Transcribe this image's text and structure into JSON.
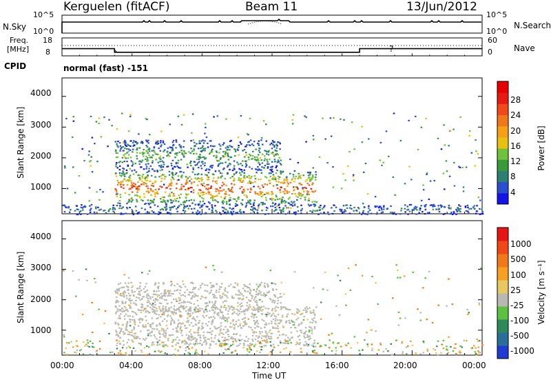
{
  "header": {
    "station": "Kerguelen (fitACF)",
    "beam": "Beam 11",
    "date": "13/Jun/2012"
  },
  "nsky_panel": {
    "left_label": "N.Sky",
    "right_label": "N.Search",
    "left_ticks": [
      "10^5",
      "10^0"
    ],
    "right_ticks": [
      "10^5",
      "10^0"
    ]
  },
  "freq_panel": {
    "left_label_line1": "Freq.",
    "left_label_line2": "[MHz]",
    "right_label": "Nave",
    "left_ticks": [
      "18",
      "8"
    ],
    "right_ticks": [
      "60",
      "0"
    ],
    "question_mark": "?"
  },
  "cpid_panel": {
    "label": "CPID",
    "mode_text": "normal (fast) -151"
  },
  "time_axis": {
    "xlabel": "Time UT",
    "ticks": [
      "00:00",
      "04:00",
      "08:00",
      "12:00",
      "16:00",
      "20:00",
      "00:00"
    ]
  },
  "power_colorbar": {
    "label": "Power [dB]",
    "ticks": [
      "28",
      "24",
      "20",
      "16",
      "12",
      "8",
      "4"
    ],
    "colors": [
      "#1414e6",
      "#2a4ed0",
      "#2e7f73",
      "#3a9a3a",
      "#6fc23a",
      "#e8c010",
      "#f5a015",
      "#f07818",
      "#f04a18",
      "#e81a14",
      "#e60000"
    ]
  },
  "velocity_colorbar": {
    "label": "Velocity [m s⁻¹]",
    "ticks": [
      "1000",
      "500",
      "100",
      "25",
      "-25",
      "-100",
      "-500",
      "-1000"
    ],
    "colors": [
      "#1e3cd2",
      "#2a6f9a",
      "#2e8a5a",
      "#5cc040",
      "#b9b9b0",
      "#e8c860",
      "#f5a020",
      "#f07a18",
      "#f04818",
      "#e61414"
    ]
  },
  "chart_data": [
    {
      "type": "heatmap",
      "title": "",
      "quantity": "Power",
      "xlabel": "Time UT",
      "ylabel": "Slant Range [km]",
      "xlim_hours": [
        0,
        24
      ],
      "ylim_km": [
        180,
        4600
      ],
      "yticks": [
        "1000",
        "2000",
        "3000",
        "4000"
      ],
      "zlim_db": [
        0,
        32
      ],
      "features": [
        {
          "name": "main echo band",
          "t_start_h": 3.0,
          "t_end_h": 14.5,
          "range_km": [
            500,
            1600
          ],
          "peak_power_db": 30
        },
        {
          "name": "upper echo band",
          "t_start_h": 3.0,
          "t_end_h": 12.5,
          "range_km": [
            1600,
            2600
          ],
          "peak_power_db": 16
        },
        {
          "name": "near-range ground echoes",
          "t_start_h": 0.0,
          "t_end_h": 24.0,
          "range_km": [
            180,
            500
          ],
          "peak_power_db": 12
        }
      ]
    },
    {
      "type": "heatmap",
      "title": "",
      "quantity": "Velocity",
      "xlabel": "Time UT",
      "ylabel": "Slant Range [km]",
      "xlim_hours": [
        0,
        24
      ],
      "ylim_km": [
        180,
        4600
      ],
      "yticks": [
        "1000",
        "2000",
        "3000",
        "4000"
      ],
      "zlim_ms": [
        -1000,
        1000
      ],
      "features": [
        {
          "name": "main echo band (near-zero velocity)",
          "t_start_h": 3.0,
          "t_end_h": 14.5,
          "range_km": [
            500,
            1800
          ],
          "velocity_ms": 0
        },
        {
          "name": "upper echo band",
          "t_start_h": 3.0,
          "t_end_h": 12.5,
          "range_km": [
            1600,
            2600
          ],
          "velocity_ms": 50
        }
      ]
    },
    {
      "type": "line",
      "title": "",
      "quantity": "Frequency",
      "x_hours": [
        0,
        3.0,
        3.0,
        17.0,
        17.0,
        24
      ],
      "y_mhz": [
        12,
        12,
        10,
        10,
        12,
        12
      ],
      "ylim_mhz": [
        8,
        18
      ]
    }
  ]
}
